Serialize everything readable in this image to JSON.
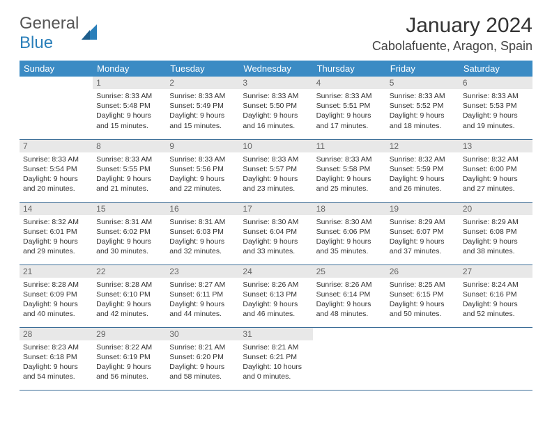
{
  "logo": {
    "text1": "General",
    "text2": "Blue"
  },
  "title": "January 2024",
  "location": "Cabolafuente, Aragon, Spain",
  "colors": {
    "header_bg": "#3b8bc4",
    "header_text": "#ffffff",
    "daynum_bg": "#e8e8e8",
    "border": "#3b6d97",
    "logo_accent": "#2a7fba"
  },
  "weekdays": [
    "Sunday",
    "Monday",
    "Tuesday",
    "Wednesday",
    "Thursday",
    "Friday",
    "Saturday"
  ],
  "weeks": [
    [
      null,
      {
        "n": "1",
        "l1": "Sunrise: 8:33 AM",
        "l2": "Sunset: 5:48 PM",
        "l3": "Daylight: 9 hours",
        "l4": "and 15 minutes."
      },
      {
        "n": "2",
        "l1": "Sunrise: 8:33 AM",
        "l2": "Sunset: 5:49 PM",
        "l3": "Daylight: 9 hours",
        "l4": "and 15 minutes."
      },
      {
        "n": "3",
        "l1": "Sunrise: 8:33 AM",
        "l2": "Sunset: 5:50 PM",
        "l3": "Daylight: 9 hours",
        "l4": "and 16 minutes."
      },
      {
        "n": "4",
        "l1": "Sunrise: 8:33 AM",
        "l2": "Sunset: 5:51 PM",
        "l3": "Daylight: 9 hours",
        "l4": "and 17 minutes."
      },
      {
        "n": "5",
        "l1": "Sunrise: 8:33 AM",
        "l2": "Sunset: 5:52 PM",
        "l3": "Daylight: 9 hours",
        "l4": "and 18 minutes."
      },
      {
        "n": "6",
        "l1": "Sunrise: 8:33 AM",
        "l2": "Sunset: 5:53 PM",
        "l3": "Daylight: 9 hours",
        "l4": "and 19 minutes."
      }
    ],
    [
      {
        "n": "7",
        "l1": "Sunrise: 8:33 AM",
        "l2": "Sunset: 5:54 PM",
        "l3": "Daylight: 9 hours",
        "l4": "and 20 minutes."
      },
      {
        "n": "8",
        "l1": "Sunrise: 8:33 AM",
        "l2": "Sunset: 5:55 PM",
        "l3": "Daylight: 9 hours",
        "l4": "and 21 minutes."
      },
      {
        "n": "9",
        "l1": "Sunrise: 8:33 AM",
        "l2": "Sunset: 5:56 PM",
        "l3": "Daylight: 9 hours",
        "l4": "and 22 minutes."
      },
      {
        "n": "10",
        "l1": "Sunrise: 8:33 AM",
        "l2": "Sunset: 5:57 PM",
        "l3": "Daylight: 9 hours",
        "l4": "and 23 minutes."
      },
      {
        "n": "11",
        "l1": "Sunrise: 8:33 AM",
        "l2": "Sunset: 5:58 PM",
        "l3": "Daylight: 9 hours",
        "l4": "and 25 minutes."
      },
      {
        "n": "12",
        "l1": "Sunrise: 8:32 AM",
        "l2": "Sunset: 5:59 PM",
        "l3": "Daylight: 9 hours",
        "l4": "and 26 minutes."
      },
      {
        "n": "13",
        "l1": "Sunrise: 8:32 AM",
        "l2": "Sunset: 6:00 PM",
        "l3": "Daylight: 9 hours",
        "l4": "and 27 minutes."
      }
    ],
    [
      {
        "n": "14",
        "l1": "Sunrise: 8:32 AM",
        "l2": "Sunset: 6:01 PM",
        "l3": "Daylight: 9 hours",
        "l4": "and 29 minutes."
      },
      {
        "n": "15",
        "l1": "Sunrise: 8:31 AM",
        "l2": "Sunset: 6:02 PM",
        "l3": "Daylight: 9 hours",
        "l4": "and 30 minutes."
      },
      {
        "n": "16",
        "l1": "Sunrise: 8:31 AM",
        "l2": "Sunset: 6:03 PM",
        "l3": "Daylight: 9 hours",
        "l4": "and 32 minutes."
      },
      {
        "n": "17",
        "l1": "Sunrise: 8:30 AM",
        "l2": "Sunset: 6:04 PM",
        "l3": "Daylight: 9 hours",
        "l4": "and 33 minutes."
      },
      {
        "n": "18",
        "l1": "Sunrise: 8:30 AM",
        "l2": "Sunset: 6:06 PM",
        "l3": "Daylight: 9 hours",
        "l4": "and 35 minutes."
      },
      {
        "n": "19",
        "l1": "Sunrise: 8:29 AM",
        "l2": "Sunset: 6:07 PM",
        "l3": "Daylight: 9 hours",
        "l4": "and 37 minutes."
      },
      {
        "n": "20",
        "l1": "Sunrise: 8:29 AM",
        "l2": "Sunset: 6:08 PM",
        "l3": "Daylight: 9 hours",
        "l4": "and 38 minutes."
      }
    ],
    [
      {
        "n": "21",
        "l1": "Sunrise: 8:28 AM",
        "l2": "Sunset: 6:09 PM",
        "l3": "Daylight: 9 hours",
        "l4": "and 40 minutes."
      },
      {
        "n": "22",
        "l1": "Sunrise: 8:28 AM",
        "l2": "Sunset: 6:10 PM",
        "l3": "Daylight: 9 hours",
        "l4": "and 42 minutes."
      },
      {
        "n": "23",
        "l1": "Sunrise: 8:27 AM",
        "l2": "Sunset: 6:11 PM",
        "l3": "Daylight: 9 hours",
        "l4": "and 44 minutes."
      },
      {
        "n": "24",
        "l1": "Sunrise: 8:26 AM",
        "l2": "Sunset: 6:13 PM",
        "l3": "Daylight: 9 hours",
        "l4": "and 46 minutes."
      },
      {
        "n": "25",
        "l1": "Sunrise: 8:26 AM",
        "l2": "Sunset: 6:14 PM",
        "l3": "Daylight: 9 hours",
        "l4": "and 48 minutes."
      },
      {
        "n": "26",
        "l1": "Sunrise: 8:25 AM",
        "l2": "Sunset: 6:15 PM",
        "l3": "Daylight: 9 hours",
        "l4": "and 50 minutes."
      },
      {
        "n": "27",
        "l1": "Sunrise: 8:24 AM",
        "l2": "Sunset: 6:16 PM",
        "l3": "Daylight: 9 hours",
        "l4": "and 52 minutes."
      }
    ],
    [
      {
        "n": "28",
        "l1": "Sunrise: 8:23 AM",
        "l2": "Sunset: 6:18 PM",
        "l3": "Daylight: 9 hours",
        "l4": "and 54 minutes."
      },
      {
        "n": "29",
        "l1": "Sunrise: 8:22 AM",
        "l2": "Sunset: 6:19 PM",
        "l3": "Daylight: 9 hours",
        "l4": "and 56 minutes."
      },
      {
        "n": "30",
        "l1": "Sunrise: 8:21 AM",
        "l2": "Sunset: 6:20 PM",
        "l3": "Daylight: 9 hours",
        "l4": "and 58 minutes."
      },
      {
        "n": "31",
        "l1": "Sunrise: 8:21 AM",
        "l2": "Sunset: 6:21 PM",
        "l3": "Daylight: 10 hours",
        "l4": "and 0 minutes."
      },
      null,
      null,
      null
    ]
  ]
}
